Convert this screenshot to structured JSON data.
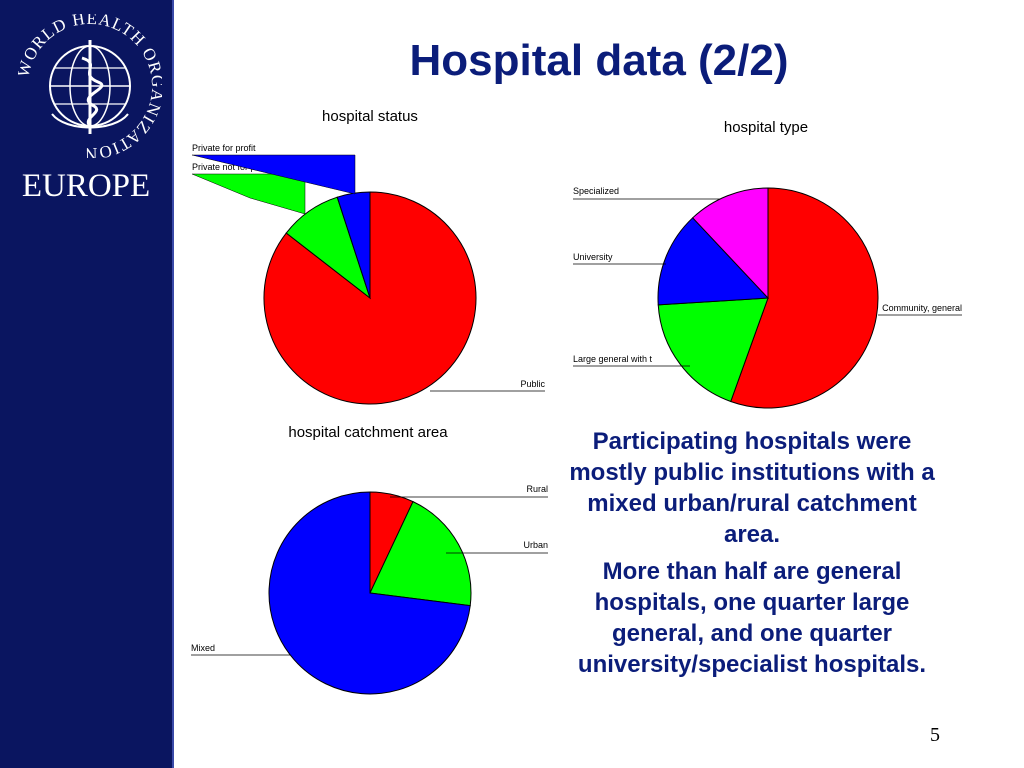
{
  "sidebar": {
    "logo_text": "WORLD HEALTH ORGANIZATION",
    "region_label": "EUROPE"
  },
  "slide": {
    "title": "Hospital data (2/2)",
    "page_number": "5",
    "paragraphs": [
      "Participating hospitals were mostly public institutions with a mixed urban/rural catchment area.",
      "More than half are general hospitals, one quarter large general, and one quarter university/specialist hospitals."
    ]
  },
  "chart_data": [
    {
      "type": "pie",
      "title": "hospital status",
      "slices": [
        {
          "label": "Public",
          "value": 85.5,
          "color": "#ff0000"
        },
        {
          "label": "Private not for profit",
          "value": 9.5,
          "color": "#00ff00"
        },
        {
          "label": "Private for profit",
          "value": 5.0,
          "color": "#0000ff"
        }
      ]
    },
    {
      "type": "pie",
      "title": "hospital type",
      "slices": [
        {
          "label": "Community, general",
          "value": 55.5,
          "color": "#ff0000"
        },
        {
          "label": "Large general with t",
          "value": 18.5,
          "color": "#00ff00"
        },
        {
          "label": "University",
          "value": 14.0,
          "color": "#0000ff"
        },
        {
          "label": "Specialized",
          "value": 12.0,
          "color": "#ff00ff"
        }
      ]
    },
    {
      "type": "pie",
      "title": "hospital catchment area",
      "slices": [
        {
          "label": "Rural",
          "value": 7.0,
          "color": "#ff0000"
        },
        {
          "label": "Urban",
          "value": 20.0,
          "color": "#00ff00"
        },
        {
          "label": "Mixed",
          "value": 73.0,
          "color": "#0000ff"
        }
      ]
    }
  ]
}
